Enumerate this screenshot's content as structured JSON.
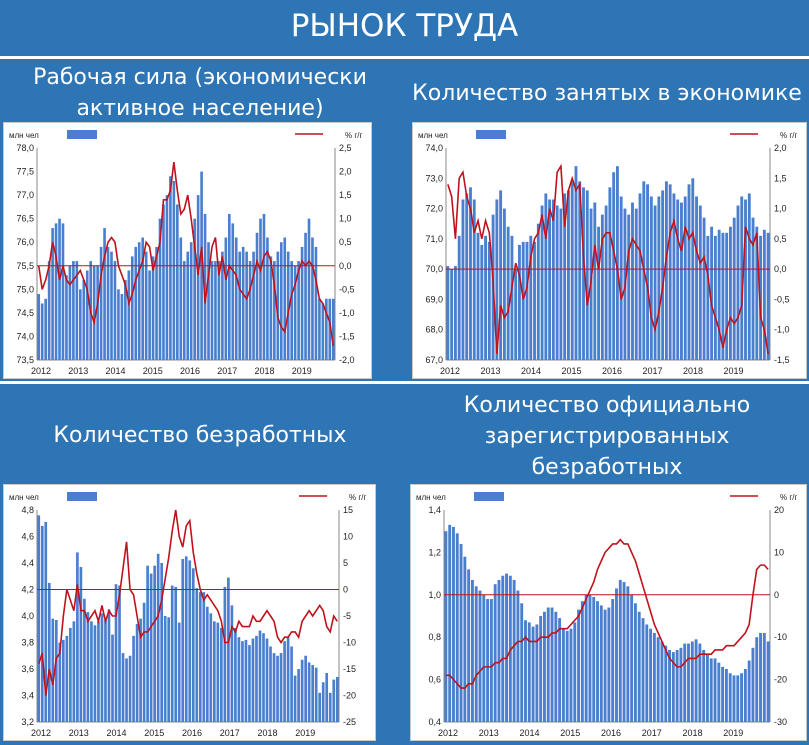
{
  "page_title": "РЫНОК ТРУДА",
  "panels": [
    {
      "heading_lines": [
        "Рабочая сила (экономически",
        "активное население)"
      ]
    },
    {
      "heading_lines": [
        "Количество занятых в экономике"
      ]
    },
    {
      "heading_lines": [
        "Количество безработных"
      ]
    },
    {
      "heading_lines": [
        "Количество официально",
        "зарегистрированных",
        "безработных"
      ]
    }
  ],
  "colors": {
    "bar": "#4a7fd0",
    "line": "#c0121c",
    "background": "#2e75b6"
  },
  "chart_data": [
    {
      "type": "bar",
      "left_unit": "млн чел",
      "right_unit": "% г/г",
      "years": [
        "2012",
        "2013",
        "2014",
        "2015",
        "2016",
        "2017",
        "2018",
        "2019"
      ],
      "left_ticks": [
        "78,0",
        "77,5",
        "77,0",
        "76,5",
        "76,0",
        "75,5",
        "75,0",
        "74,5",
        "74,0",
        "73,5"
      ],
      "right_ticks": [
        "2,5",
        "2,0",
        "1,5",
        "1,0",
        "0,5",
        "0,0",
        "-0,5",
        "-1,0",
        "-1,5",
        "-2,0"
      ],
      "ylim_left": [
        73.5,
        78.0
      ],
      "ylim_right": [
        -2.0,
        2.5
      ],
      "values": [
        74.9,
        74.7,
        74.8,
        75.6,
        76.3,
        76.4,
        76.5,
        76.4,
        75.3,
        75.5,
        75.6,
        75.6,
        75.0,
        75.2,
        75.4,
        75.6,
        75.5,
        75.5,
        75.9,
        76.3,
        75.9,
        75.8,
        75.6,
        75.0,
        74.9,
        75.2,
        75.4,
        75.7,
        75.9,
        76.0,
        76.1,
        75.8,
        75.4,
        75.7,
        75.9,
        76.5,
        76.8,
        77.0,
        77.4,
        77.3,
        76.8,
        76.1,
        75.6,
        75.8,
        76.0,
        76.5,
        77.0,
        77.5,
        76.6,
        76.0,
        75.6,
        75.6,
        75.6,
        75.8,
        76.1,
        76.6,
        76.4,
        76.1,
        75.8,
        75.9,
        75.8,
        75.6,
        75.8,
        76.2,
        76.5,
        76.6,
        76.1,
        75.7,
        75.6,
        75.8,
        76.0,
        76.1,
        75.8,
        75.6,
        75.5,
        75.6,
        75.9,
        76.2,
        76.5,
        76.1,
        75.9,
        74.8,
        74.7,
        74.8,
        74.8,
        74.8
      ],
      "growth": [
        0.0,
        -0.5,
        -0.3,
        0.0,
        0.5,
        0.2,
        -0.3,
        0.0,
        -0.3,
        -0.4,
        -0.3,
        -0.2,
        -0.1,
        -0.3,
        -0.5,
        -1.0,
        -1.2,
        -0.8,
        -0.2,
        0.2,
        0.5,
        0.6,
        0.5,
        0.0,
        -0.2,
        -0.4,
        -0.8,
        -0.6,
        -0.3,
        -0.1,
        0.1,
        0.5,
        0.4,
        -0.1,
        0.2,
        0.5,
        1.4,
        1.4,
        1.6,
        2.2,
        1.6,
        1.1,
        1.2,
        1.5,
        1.0,
        0.4,
        -0.2,
        0.4,
        -0.8,
        -0.2,
        0.4,
        0.6,
        -0.2,
        0.2,
        -0.3,
        0.0,
        -0.1,
        -0.2,
        -0.5,
        -0.6,
        -0.7,
        -0.5,
        -0.2,
        0.1,
        -0.1,
        0.2,
        0.3,
        0.1,
        -0.4,
        -1.1,
        -1.3,
        -1.4,
        -1.0,
        -0.6,
        -0.4,
        -0.1,
        0.1,
        0.0,
        0.1,
        0.0,
        -0.3,
        -0.7,
        -0.8,
        -1.0,
        -1.2,
        -1.7
      ]
    },
    {
      "type": "bar",
      "left_unit": "млн чел",
      "right_unit": "% г/г",
      "years": [
        "2012",
        "2013",
        "2014",
        "2015",
        "2016",
        "2017",
        "2018",
        "2019"
      ],
      "left_ticks": [
        "74,0",
        "73,0",
        "72,0",
        "71,0",
        "70,0",
        "69,0",
        "68,0",
        "67,0"
      ],
      "right_ticks": [
        "2,0",
        "1,5",
        "1,0",
        "0,5",
        "0,0",
        "-0,5",
        "-1,0",
        "-1,5"
      ],
      "ylim_left": [
        67.0,
        74.0
      ],
      "ylim_right": [
        -1.5,
        2.0
      ],
      "values": [
        70.1,
        70.0,
        70.1,
        71.1,
        72.3,
        72.5,
        72.7,
        72.3,
        71.2,
        70.8,
        71.1,
        70.9,
        71.8,
        72.3,
        72.6,
        72.0,
        71.4,
        71.1,
        70.0,
        70.8,
        70.9,
        70.9,
        71.1,
        70.9,
        71.5,
        72.1,
        72.5,
        72.3,
        72.3,
        72.1,
        72.0,
        72.5,
        72.6,
        72.9,
        73.4,
        72.9,
        72.7,
        72.6,
        72.0,
        72.2,
        71.4,
        71.8,
        72.1,
        72.7,
        73.2,
        73.4,
        72.4,
        72.0,
        71.8,
        72.2,
        72.0,
        72.5,
        72.9,
        72.8,
        72.4,
        72.1,
        72.4,
        72.6,
        72.9,
        72.8,
        72.5,
        72.3,
        72.2,
        72.4,
        72.8,
        73.0,
        72.4,
        72.1,
        71.7,
        71.1,
        71.4,
        71.1,
        71.3,
        71.2,
        71.2,
        71.4,
        71.7,
        72.1,
        72.4,
        72.3,
        72.5,
        71.7,
        71.4,
        71.1,
        71.3,
        71.2
      ],
      "growth": [
        1.4,
        1.2,
        0.5,
        1.5,
        1.6,
        1.2,
        1.0,
        0.6,
        0.8,
        0.5,
        0.8,
        0.6,
        -0.2,
        -1.4,
        -0.6,
        -0.8,
        -0.7,
        -0.3,
        0.1,
        -0.1,
        -0.5,
        -0.3,
        0.2,
        0.5,
        0.6,
        0.9,
        0.5,
        1.0,
        0.8,
        1.6,
        1.7,
        0.7,
        1.3,
        1.5,
        1.3,
        1.4,
        0.2,
        -0.6,
        -0.2,
        0.4,
        0.0,
        0.5,
        0.6,
        0.6,
        0.3,
        0.0,
        -0.5,
        -0.3,
        0.3,
        0.5,
        0.4,
        0.3,
        0.0,
        -0.3,
        -0.8,
        -1.0,
        -0.7,
        -0.3,
        0.2,
        0.6,
        0.8,
        0.5,
        0.3,
        0.7,
        0.5,
        0.6,
        0.3,
        0.1,
        0.2,
        -0.1,
        -0.6,
        -0.8,
        -1.0,
        -1.3,
        -1.0,
        -0.8,
        -0.9,
        -0.8,
        -0.6,
        0.7,
        0.5,
        0.4,
        0.6,
        -0.8,
        -1.0,
        -1.4
      ]
    },
    {
      "type": "bar",
      "left_unit": "млн чел",
      "right_unit": "% г/г",
      "years": [
        "2012",
        "2013",
        "2014",
        "2015",
        "2016",
        "2017",
        "2018",
        "2019"
      ],
      "left_ticks": [
        "4,8",
        "4,6",
        "4,4",
        "4,2",
        "4,0",
        "3,8",
        "3,6",
        "3,4",
        "3,2"
      ],
      "right_ticks": [
        "15",
        "10",
        "5",
        "0",
        "-5",
        "-10",
        "-15",
        "-20",
        "-25"
      ],
      "ylim_left": [
        3.2,
        4.8
      ],
      "ylim_right": [
        -25,
        15
      ],
      "values": [
        4.76,
        4.68,
        4.71,
        4.25,
        3.98,
        3.97,
        3.8,
        3.82,
        3.85,
        3.91,
        3.96,
        4.48,
        4.37,
        4.13,
        4.03,
        3.96,
        3.93,
        3.96,
        4.02,
        3.97,
        4.05,
        3.86,
        4.24,
        4.23,
        3.72,
        3.68,
        3.7,
        3.85,
        3.94,
        3.98,
        4.1,
        4.38,
        4.32,
        4.38,
        4.47,
        4.4,
        4.0,
        3.99,
        4.23,
        4.22,
        3.95,
        4.43,
        4.45,
        4.42,
        4.36,
        4.21,
        4.18,
        4.18,
        4.07,
        4.02,
        3.96,
        3.95,
        3.91,
        4.22,
        4.29,
        4.08,
        3.91,
        3.84,
        3.81,
        3.82,
        3.78,
        3.83,
        3.85,
        3.89,
        3.87,
        3.83,
        3.77,
        3.72,
        3.7,
        3.72,
        3.81,
        3.84,
        3.77,
        3.55,
        3.6,
        3.67,
        3.7,
        3.65,
        3.63,
        3.61,
        3.42,
        3.5,
        3.57,
        3.42,
        3.52,
        3.54
      ],
      "growth": [
        -14.0,
        -12.0,
        -20.0,
        -15.0,
        -18.0,
        -13.0,
        -12.0,
        -5.0,
        0.0,
        -2.0,
        -4.0,
        1.0,
        -4.0,
        -4.0,
        -6.0,
        -5.0,
        -4.0,
        -6.0,
        -3.0,
        -6.0,
        -4.0,
        -5.0,
        -5.0,
        -1.0,
        4.0,
        9.0,
        0.0,
        -1.0,
        -5.0,
        -9.0,
        -8.0,
        -8.0,
        -7.0,
        -6.0,
        -5.0,
        -2.0,
        2.0,
        6.0,
        11.0,
        15.0,
        10.0,
        8.0,
        12.0,
        13.0,
        7.0,
        3.0,
        0.0,
        -2.0,
        -1.0,
        -2.0,
        -3.0,
        -4.0,
        -6.0,
        -10.0,
        -10.0,
        -7.0,
        -8.0,
        -6.0,
        -7.0,
        -7.0,
        -7.0,
        -5.0,
        -6.0,
        -6.0,
        -5.0,
        -4.0,
        -5.0,
        -6.0,
        -9.0,
        -10.0,
        -9.0,
        -9.0,
        -8.0,
        -8.0,
        -9.0,
        -6.0,
        -5.0,
        -4.0,
        -5.0,
        -4.0,
        -3.0,
        -4.0,
        -7.0,
        -8.0,
        -5.0,
        -6.0
      ]
    },
    {
      "type": "bar",
      "left_unit": "млн чел",
      "right_unit": "% г/г",
      "years": [
        "2012",
        "2013",
        "2014",
        "2015",
        "2016",
        "2017",
        "2018",
        "2019"
      ],
      "left_ticks": [
        "1,4",
        "1,2",
        "1,0",
        "0,8",
        "0,6",
        "0,4"
      ],
      "right_ticks": [
        "20",
        "10",
        "0",
        "-10",
        "-20",
        "-30"
      ],
      "ylim_left": [
        0.4,
        1.4
      ],
      "ylim_right": [
        -30,
        20
      ],
      "values": [
        1.3,
        1.33,
        1.32,
        1.29,
        1.24,
        1.18,
        1.12,
        1.07,
        1.04,
        1.02,
        1.0,
        0.98,
        0.98,
        1.05,
        1.07,
        1.09,
        1.1,
        1.09,
        1.07,
        1.02,
        0.96,
        0.88,
        0.87,
        0.85,
        0.86,
        0.9,
        0.92,
        0.94,
        0.94,
        0.92,
        0.89,
        0.84,
        0.83,
        0.84,
        0.87,
        0.93,
        0.97,
        1.0,
        1.0,
        0.99,
        0.97,
        0.95,
        0.93,
        0.94,
        0.98,
        1.03,
        1.07,
        1.06,
        1.04,
        1.0,
        0.96,
        0.92,
        0.89,
        0.86,
        0.84,
        0.82,
        0.8,
        0.78,
        0.76,
        0.74,
        0.73,
        0.74,
        0.75,
        0.77,
        0.77,
        0.78,
        0.79,
        0.77,
        0.74,
        0.72,
        0.7,
        0.7,
        0.68,
        0.66,
        0.65,
        0.63,
        0.62,
        0.62,
        0.63,
        0.65,
        0.69,
        0.75,
        0.8,
        0.82,
        0.82,
        0.78
      ],
      "growth": [
        -19.0,
        -19.0,
        -20.0,
        -21.0,
        -22.0,
        -22.0,
        -21.0,
        -21.0,
        -19.0,
        -18.0,
        -17.0,
        -17.0,
        -17.0,
        -16.0,
        -16.0,
        -15.0,
        -15.0,
        -13.0,
        -12.0,
        -11.0,
        -11.0,
        -10.0,
        -11.0,
        -11.0,
        -11.0,
        -10.0,
        -10.0,
        -10.0,
        -9.0,
        -9.0,
        -8.0,
        -8.0,
        -8.0,
        -7.0,
        -6.0,
        -5.0,
        -3.0,
        -1.0,
        1.0,
        3.0,
        6.0,
        8.0,
        10.0,
        11.0,
        12.0,
        12.0,
        13.0,
        12.0,
        12.0,
        10.0,
        8.0,
        5.0,
        2.0,
        -1.0,
        -4.0,
        -7.0,
        -9.0,
        -11.0,
        -13.0,
        -15.0,
        -16.0,
        -17.0,
        -17.0,
        -16.0,
        -15.0,
        -15.0,
        -15.0,
        -14.0,
        -14.0,
        -14.0,
        -14.0,
        -13.0,
        -13.0,
        -13.0,
        -12.0,
        -12.0,
        -12.0,
        -11.0,
        -10.0,
        -9.0,
        -7.0,
        0.0,
        6.0,
        7.0,
        7.0,
        6.0
      ]
    }
  ]
}
